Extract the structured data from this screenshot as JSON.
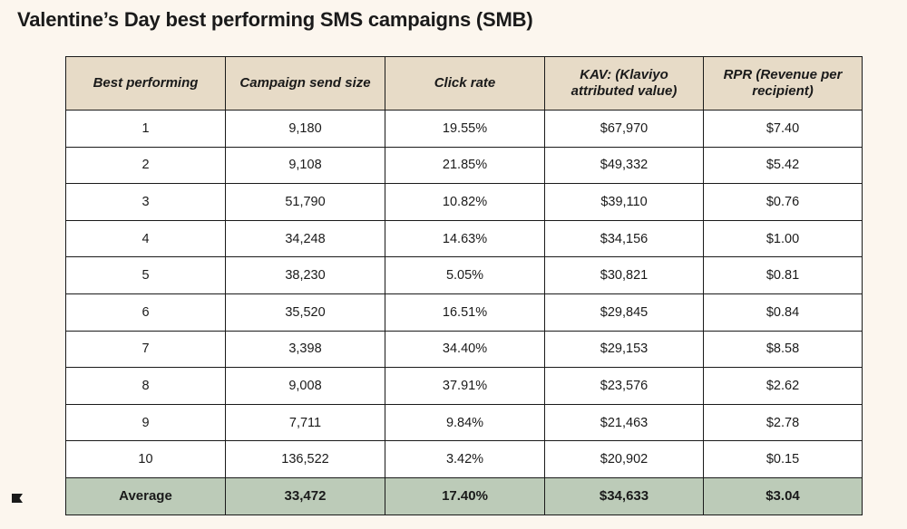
{
  "title": "Valentine’s Day best performing SMS campaigns (SMB)",
  "table": {
    "headers": [
      "Best performing",
      "Campaign send size",
      "Click rate",
      "KAV: (Klaviyo attributed value)",
      "RPR (Revenue per recipient)"
    ],
    "rows": [
      [
        "1",
        "9,180",
        "19.55%",
        "$67,970",
        "$7.40"
      ],
      [
        "2",
        "9,108",
        "21.85%",
        "$49,332",
        "$5.42"
      ],
      [
        "3",
        "51,790",
        "10.82%",
        "$39,110",
        "$0.76"
      ],
      [
        "4",
        "34,248",
        "14.63%",
        "$34,156",
        "$1.00"
      ],
      [
        "5",
        "38,230",
        "5.05%",
        "$30,821",
        "$0.81"
      ],
      [
        "6",
        "35,520",
        "16.51%",
        "$29,845",
        "$0.84"
      ],
      [
        "7",
        "3,398",
        "34.40%",
        "$29,153",
        "$8.58"
      ],
      [
        "8",
        "9,008",
        "37.91%",
        "$23,576",
        "$2.62"
      ],
      [
        "9",
        "7,711",
        "9.84%",
        "$21,463",
        "$2.78"
      ],
      [
        "10",
        "136,522",
        "3.42%",
        "$20,902",
        "$0.15"
      ]
    ],
    "average": [
      "Average",
      "33,472",
      "17.40%",
      "$34,633",
      "$3.04"
    ]
  },
  "colors": {
    "background": "#fcf6ee",
    "header_bg": "#e7dbc7",
    "average_bg": "#bccbb8",
    "border": "#1a1a1a"
  },
  "logo_icon": "klaviyo-flag-icon"
}
